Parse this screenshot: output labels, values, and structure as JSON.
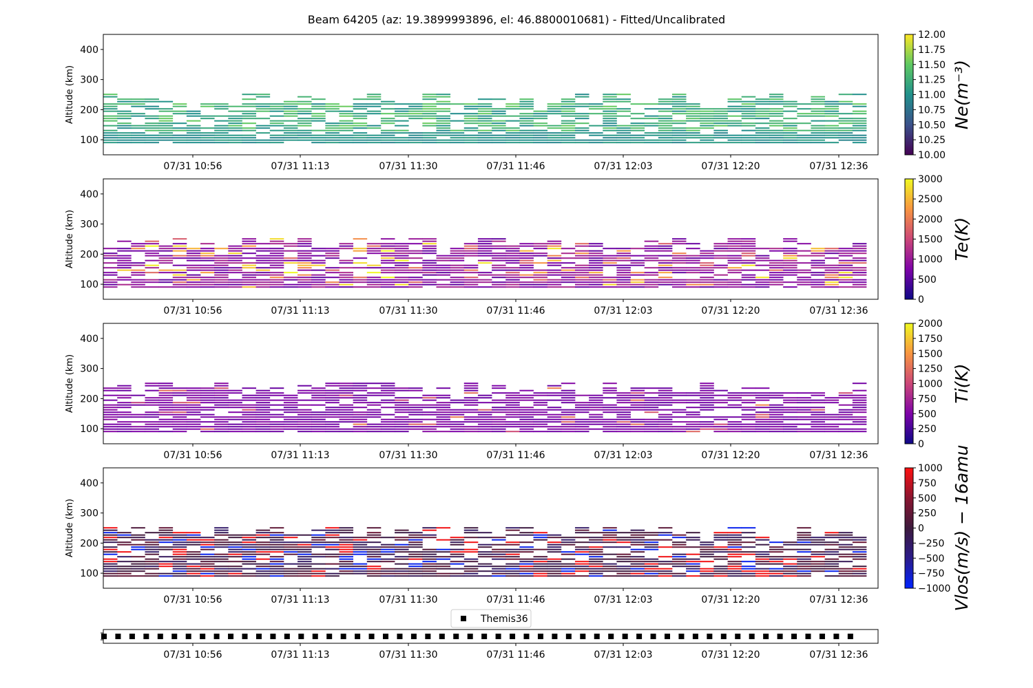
{
  "figure": {
    "title": "Beam 64205 (az: 19.3899993896, el: 46.8800010681) - Fitted/Uncalibrated"
  },
  "chart_data": [
    {
      "type": "heatmap",
      "ylabel": "Altitude (km)",
      "ylim": [
        50,
        450
      ],
      "yticks": [
        100,
        200,
        300,
        400
      ],
      "xticklabels": [
        "07/31 10:56",
        "07/31 11:13",
        "07/31 11:30",
        "07/31 11:46",
        "07/31 12:03",
        "07/31 12:20",
        "07/31 12:36"
      ],
      "colorbar": {
        "label": "Ne(m⁻³)",
        "range": [
          10.0,
          12.0
        ],
        "ticks": [
          "10.00",
          "10.25",
          "10.50",
          "10.75",
          "11.00",
          "11.25",
          "11.50",
          "11.75",
          "12.00"
        ],
        "colormap": [
          "#440154",
          "#3b528b",
          "#21918c",
          "#5ec962",
          "#fde725"
        ]
      },
      "typical_values": {
        "low_altitude": 11.0,
        "high_altitude": 11.3
      }
    },
    {
      "type": "heatmap",
      "ylabel": "Altitude (km)",
      "ylim": [
        50,
        450
      ],
      "yticks": [
        100,
        200,
        300,
        400
      ],
      "xticklabels": [
        "07/31 10:56",
        "07/31 11:13",
        "07/31 11:30",
        "07/31 11:46",
        "07/31 12:03",
        "07/31 12:20",
        "07/31 12:36"
      ],
      "colorbar": {
        "label": "Te(K)",
        "range": [
          0,
          3000
        ],
        "ticks": [
          "0",
          "500",
          "1000",
          "1500",
          "2000",
          "2500",
          "3000"
        ],
        "colormap": [
          "#0d0887",
          "#7e03a8",
          "#cc4778",
          "#f89540",
          "#f0f921"
        ]
      },
      "typical_values": {
        "low_altitude": 500,
        "high_altitude": 1000
      }
    },
    {
      "type": "heatmap",
      "ylabel": "Altitude (km)",
      "ylim": [
        50,
        450
      ],
      "yticks": [
        100,
        200,
        300,
        400
      ],
      "xticklabels": [
        "07/31 10:56",
        "07/31 11:13",
        "07/31 11:30",
        "07/31 11:46",
        "07/31 12:03",
        "07/31 12:20",
        "07/31 12:36"
      ],
      "colorbar": {
        "label": "Ti(K)",
        "range": [
          0,
          2000
        ],
        "ticks": [
          "0",
          "250",
          "500",
          "750",
          "1000",
          "1250",
          "1500",
          "1750",
          "2000"
        ],
        "colormap": [
          "#0d0887",
          "#7e03a8",
          "#cc4778",
          "#f89540",
          "#f0f921"
        ]
      },
      "typical_values": {
        "low_altitude": 400,
        "high_altitude": 550
      }
    },
    {
      "type": "heatmap",
      "ylabel": "Altitude (km)",
      "ylim": [
        50,
        450
      ],
      "yticks": [
        100,
        200,
        300,
        400
      ],
      "xticklabels": [
        "07/31 10:56",
        "07/31 11:13",
        "07/31 11:30",
        "07/31 11:46",
        "07/31 12:03",
        "07/31 12:20",
        "07/31 12:36"
      ],
      "colorbar": {
        "label": "Vlos(m/s) − 16amu",
        "range": [
          -1000,
          1000
        ],
        "ticks": [
          "−1000",
          "−750",
          "−500",
          "−250",
          "0",
          "250",
          "500",
          "750",
          "1000"
        ],
        "colormap": [
          "#0022ff",
          "#2b1b8a",
          "#3d1a3d",
          "#8a1530",
          "#ff1010"
        ]
      },
      "typical_values": {
        "low_altitude": 0,
        "high_altitude": 0
      }
    },
    {
      "type": "scatter",
      "legend": {
        "label": "Themis36",
        "placement": "top-center"
      },
      "marker": "square",
      "xticklabels": [
        "07/31 10:56",
        "07/31 11:13",
        "07/31 11:30",
        "07/31 11:46",
        "07/31 12:03",
        "07/31 12:20",
        "07/31 12:36"
      ]
    }
  ]
}
